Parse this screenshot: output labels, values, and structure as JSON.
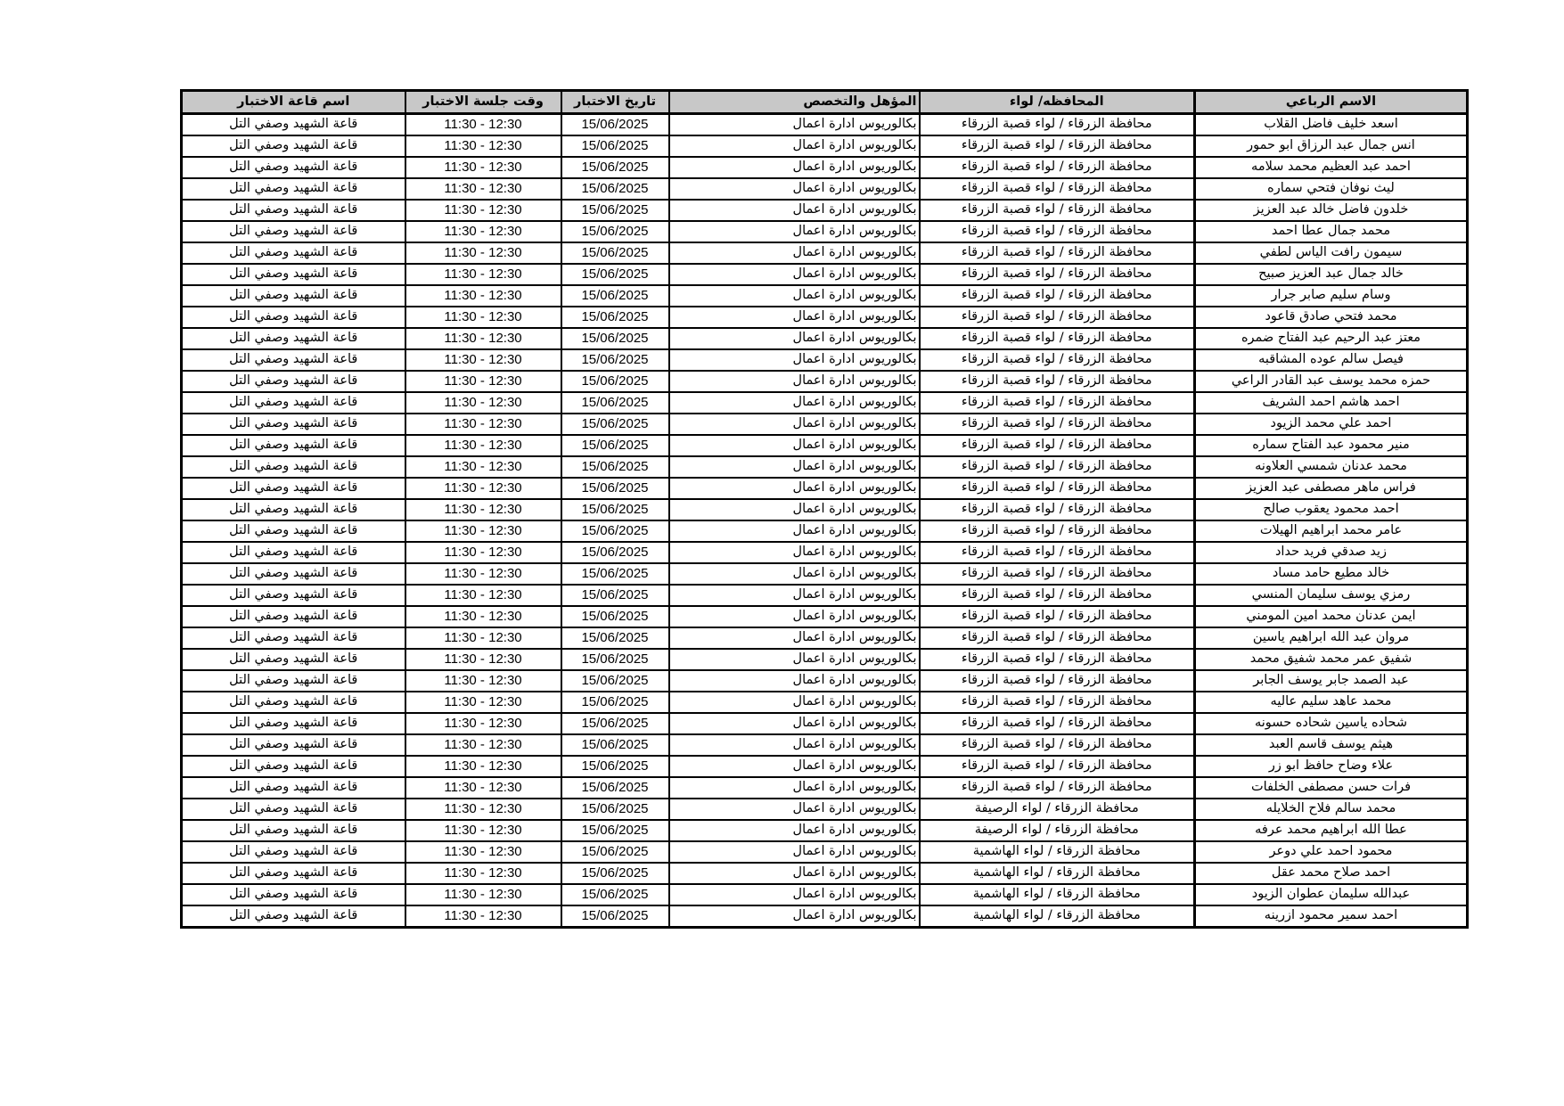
{
  "colors": {
    "header_bg": "#c8c8c8",
    "border": "#000000",
    "page_bg": "#ffffff"
  },
  "table": {
    "headers": [
      "الاسم الرباعي",
      "المحافظه/ لواء",
      "المؤهل والتخصص",
      "تاريخ الاختبار",
      "وقت جلسة الاختبار",
      "اسم قاعة الاختبار"
    ],
    "rows": [
      [
        "اسعد خليف فاضل القلاب",
        "محافظة الزرقاء / لواء قصبة الزرقاء",
        "بكالوريوس ادارة اعمال",
        "15/06/2025",
        "11:30 - 12:30",
        "قاعة الشهيد وصفي التل"
      ],
      [
        "انس جمال عبد الرزاق ابو حمور",
        "محافظة الزرقاء / لواء قصبة الزرقاء",
        "بكالوريوس ادارة اعمال",
        "15/06/2025",
        "11:30 - 12:30",
        "قاعة الشهيد وصفي التل"
      ],
      [
        "احمد عبد العظيم محمد سلامه",
        "محافظة الزرقاء / لواء قصبة الزرقاء",
        "بكالوريوس ادارة اعمال",
        "15/06/2025",
        "11:30 - 12:30",
        "قاعة الشهيد وصفي التل"
      ],
      [
        "ليث نوفان فتحي سماره",
        "محافظة الزرقاء / لواء قصبة الزرقاء",
        "بكالوريوس ادارة اعمال",
        "15/06/2025",
        "11:30 - 12:30",
        "قاعة الشهيد وصفي التل"
      ],
      [
        "خلدون فاضل خالد عبد العزيز",
        "محافظة الزرقاء / لواء قصبة الزرقاء",
        "بكالوريوس ادارة اعمال",
        "15/06/2025",
        "11:30 - 12:30",
        "قاعة الشهيد وصفي التل"
      ],
      [
        "محمد جمال عطا احمد",
        "محافظة الزرقاء / لواء قصبة الزرقاء",
        "بكالوريوس ادارة اعمال",
        "15/06/2025",
        "11:30 - 12:30",
        "قاعة الشهيد وصفي التل"
      ],
      [
        "سيمون رافت الياس لطفي",
        "محافظة الزرقاء / لواء قصبة الزرقاء",
        "بكالوريوس ادارة اعمال",
        "15/06/2025",
        "11:30 - 12:30",
        "قاعة الشهيد وصفي التل"
      ],
      [
        "خالد جمال عبد العزيز صبيح",
        "محافظة الزرقاء / لواء قصبة الزرقاء",
        "بكالوريوس ادارة اعمال",
        "15/06/2025",
        "11:30 - 12:30",
        "قاعة الشهيد وصفي التل"
      ],
      [
        "وسام سليم صابر جرار",
        "محافظة الزرقاء / لواء قصبة الزرقاء",
        "بكالوريوس ادارة اعمال",
        "15/06/2025",
        "11:30 - 12:30",
        "قاعة الشهيد وصفي التل"
      ],
      [
        "محمد فتحي صادق قاعود",
        "محافظة الزرقاء / لواء قصبة الزرقاء",
        "بكالوريوس ادارة اعمال",
        "15/06/2025",
        "11:30 - 12:30",
        "قاعة الشهيد وصفي التل"
      ],
      [
        "معتز عبد الرحيم عبد الفتاح ضمره",
        "محافظة الزرقاء / لواء قصبة الزرقاء",
        "بكالوريوس ادارة اعمال",
        "15/06/2025",
        "11:30 - 12:30",
        "قاعة الشهيد وصفي التل"
      ],
      [
        "فيصل سالم عوده المشاقبه",
        "محافظة الزرقاء / لواء قصبة الزرقاء",
        "بكالوريوس ادارة اعمال",
        "15/06/2025",
        "11:30 - 12:30",
        "قاعة الشهيد وصفي التل"
      ],
      [
        "حمزه محمد يوسف عبد القادر الراعي",
        "محافظة الزرقاء / لواء قصبة الزرقاء",
        "بكالوريوس ادارة اعمال",
        "15/06/2025",
        "11:30 - 12:30",
        "قاعة الشهيد وصفي التل"
      ],
      [
        "احمد هاشم احمد الشريف",
        "محافظة الزرقاء / لواء قصبة الزرقاء",
        "بكالوريوس ادارة اعمال",
        "15/06/2025",
        "11:30 - 12:30",
        "قاعة الشهيد وصفي التل"
      ],
      [
        "احمد علي محمد الزيود",
        "محافظة الزرقاء / لواء قصبة الزرقاء",
        "بكالوريوس ادارة اعمال",
        "15/06/2025",
        "11:30 - 12:30",
        "قاعة الشهيد وصفي التل"
      ],
      [
        "منير محمود عبد الفتاح سماره",
        "محافظة الزرقاء / لواء قصبة الزرقاء",
        "بكالوريوس ادارة اعمال",
        "15/06/2025",
        "11:30 - 12:30",
        "قاعة الشهيد وصفي التل"
      ],
      [
        "محمد عدنان شمسي العلاونه",
        "محافظة الزرقاء / لواء قصبة الزرقاء",
        "بكالوريوس ادارة اعمال",
        "15/06/2025",
        "11:30 - 12:30",
        "قاعة الشهيد وصفي التل"
      ],
      [
        "فراس ماهر مصطفى عبد العزيز",
        "محافظة الزرقاء / لواء قصبة الزرقاء",
        "بكالوريوس ادارة اعمال",
        "15/06/2025",
        "11:30 - 12:30",
        "قاعة الشهيد وصفي التل"
      ],
      [
        "احمد محمود يعقوب صالح",
        "محافظة الزرقاء / لواء قصبة الزرقاء",
        "بكالوريوس ادارة اعمال",
        "15/06/2025",
        "11:30 - 12:30",
        "قاعة الشهيد وصفي التل"
      ],
      [
        "عامر محمد ابراهيم الهيلات",
        "محافظة الزرقاء / لواء قصبة الزرقاء",
        "بكالوريوس ادارة اعمال",
        "15/06/2025",
        "11:30 - 12:30",
        "قاعة الشهيد وصفي التل"
      ],
      [
        "زيد صدقي فريد حداد",
        "محافظة الزرقاء / لواء قصبة الزرقاء",
        "بكالوريوس ادارة اعمال",
        "15/06/2025",
        "11:30 - 12:30",
        "قاعة الشهيد وصفي التل"
      ],
      [
        "خالد مطيع حامد مساد",
        "محافظة الزرقاء / لواء قصبة الزرقاء",
        "بكالوريوس ادارة اعمال",
        "15/06/2025",
        "11:30 - 12:30",
        "قاعة الشهيد وصفي التل"
      ],
      [
        "رمزي يوسف سليمان المنسي",
        "محافظة الزرقاء / لواء قصبة الزرقاء",
        "بكالوريوس ادارة اعمال",
        "15/06/2025",
        "11:30 - 12:30",
        "قاعة الشهيد وصفي التل"
      ],
      [
        "ايمن عدنان محمد امين المومني",
        "محافظة الزرقاء / لواء قصبة الزرقاء",
        "بكالوريوس ادارة اعمال",
        "15/06/2025",
        "11:30 - 12:30",
        "قاعة الشهيد وصفي التل"
      ],
      [
        "مروان عبد الله ابراهيم ياسين",
        "محافظة الزرقاء / لواء قصبة الزرقاء",
        "بكالوريوس ادارة اعمال",
        "15/06/2025",
        "11:30 - 12:30",
        "قاعة الشهيد وصفي التل"
      ],
      [
        "شفيق عمر محمد شفيق محمد",
        "محافظة الزرقاء / لواء قصبة الزرقاء",
        "بكالوريوس ادارة اعمال",
        "15/06/2025",
        "11:30 - 12:30",
        "قاعة الشهيد وصفي التل"
      ],
      [
        "عبد الصمد جابر يوسف الجابر",
        "محافظة الزرقاء / لواء قصبة الزرقاء",
        "بكالوريوس ادارة اعمال",
        "15/06/2025",
        "11:30 - 12:30",
        "قاعة الشهيد وصفي التل"
      ],
      [
        "محمد عاهد سليم عاليه",
        "محافظة الزرقاء / لواء قصبة الزرقاء",
        "بكالوريوس ادارة اعمال",
        "15/06/2025",
        "11:30 - 12:30",
        "قاعة الشهيد وصفي التل"
      ],
      [
        "شحاده ياسين شحاده حسونه",
        "محافظة الزرقاء / لواء قصبة الزرقاء",
        "بكالوريوس ادارة اعمال",
        "15/06/2025",
        "11:30 - 12:30",
        "قاعة الشهيد وصفي التل"
      ],
      [
        "هيثم يوسف قاسم العبد",
        "محافظة الزرقاء / لواء قصبة الزرقاء",
        "بكالوريوس ادارة اعمال",
        "15/06/2025",
        "11:30 - 12:30",
        "قاعة الشهيد وصفي التل"
      ],
      [
        "علاء وضاح حافظ ابو زر",
        "محافظة الزرقاء / لواء قصبة الزرقاء",
        "بكالوريوس ادارة اعمال",
        "15/06/2025",
        "11:30 - 12:30",
        "قاعة الشهيد وصفي التل"
      ],
      [
        "فرات حسن مصطفى الخلفات",
        "محافظة الزرقاء / لواء قصبة الزرقاء",
        "بكالوريوس ادارة اعمال",
        "15/06/2025",
        "11:30 - 12:30",
        "قاعة الشهيد وصفي التل"
      ],
      [
        "محمد سالم فلاح الخلايله",
        "محافظة الزرقاء / لواء الرصيفة",
        "بكالوريوس ادارة اعمال",
        "15/06/2025",
        "11:30 - 12:30",
        "قاعة الشهيد وصفي التل"
      ],
      [
        "عطا الله ابراهيم محمد عرفه",
        "محافظة الزرقاء / لواء الرصيفة",
        "بكالوريوس ادارة اعمال",
        "15/06/2025",
        "11:30 - 12:30",
        "قاعة الشهيد وصفي التل"
      ],
      [
        "محمود احمد علي دوعر",
        "محافظة الزرقاء / لواء الهاشمية",
        "بكالوريوس ادارة اعمال",
        "15/06/2025",
        "11:30 - 12:30",
        "قاعة الشهيد وصفي التل"
      ],
      [
        "احمد صلاح محمد عقل",
        "محافظة الزرقاء / لواء الهاشمية",
        "بكالوريوس ادارة اعمال",
        "15/06/2025",
        "11:30 - 12:30",
        "قاعة الشهيد وصفي التل"
      ],
      [
        "عبدالله سليمان عطوان الزيود",
        "محافظة الزرقاء / لواء الهاشمية",
        "بكالوريوس ادارة اعمال",
        "15/06/2025",
        "11:30 - 12:30",
        "قاعة الشهيد وصفي التل"
      ],
      [
        "احمد سمير محمود ازرينه",
        "محافظة الزرقاء / لواء الهاشمية",
        "بكالوريوس ادارة اعمال",
        "15/06/2025",
        "11:30 - 12:30",
        "قاعة الشهيد وصفي التل"
      ]
    ]
  }
}
